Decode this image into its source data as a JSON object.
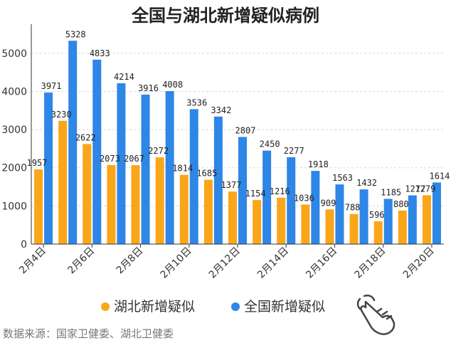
{
  "chart_data": {
    "type": "bar",
    "title": "全国与湖北新增疑似病例",
    "categories": [
      "2月4日",
      "2月5日",
      "2月6日",
      "2月7日",
      "2月8日",
      "2月9日",
      "2月10日",
      "2月11日",
      "2月12日",
      "2月13日",
      "2月14日",
      "2月15日",
      "2月16日",
      "2月17日",
      "2月18日",
      "2月19日",
      "2月20日"
    ],
    "x_tick_labels": [
      "2月4日",
      "2月6日",
      "2月8日",
      "2月10日",
      "2月12日",
      "2月14日",
      "2月16日",
      "2月18日",
      "2月20日"
    ],
    "y_ticks": [
      0,
      1000,
      2000,
      3000,
      4000,
      5000
    ],
    "ylim": [
      0,
      5650
    ],
    "grid": true,
    "legend_position": "bottom",
    "series": [
      {
        "name": "湖北新增疑似",
        "color": "#FAA61A",
        "values": [
          1957,
          3230,
          2622,
          2073,
          2067,
          2272,
          1814,
          1685,
          1377,
          1154,
          1216,
          1036,
          909,
          788,
          596,
          880,
          1279
        ]
      },
      {
        "name": "全国新增疑似",
        "color": "#2E86E6",
        "values": [
          3971,
          5328,
          4833,
          4214,
          3916,
          4008,
          3536,
          3342,
          2807,
          2450,
          2277,
          1918,
          1563,
          1432,
          1185,
          1277,
          1614
        ]
      }
    ]
  },
  "footer": {
    "source": "数据来源：国家卫健委、湖北卫健委"
  },
  "icons": {
    "hand": "pointing-hand-icon"
  }
}
